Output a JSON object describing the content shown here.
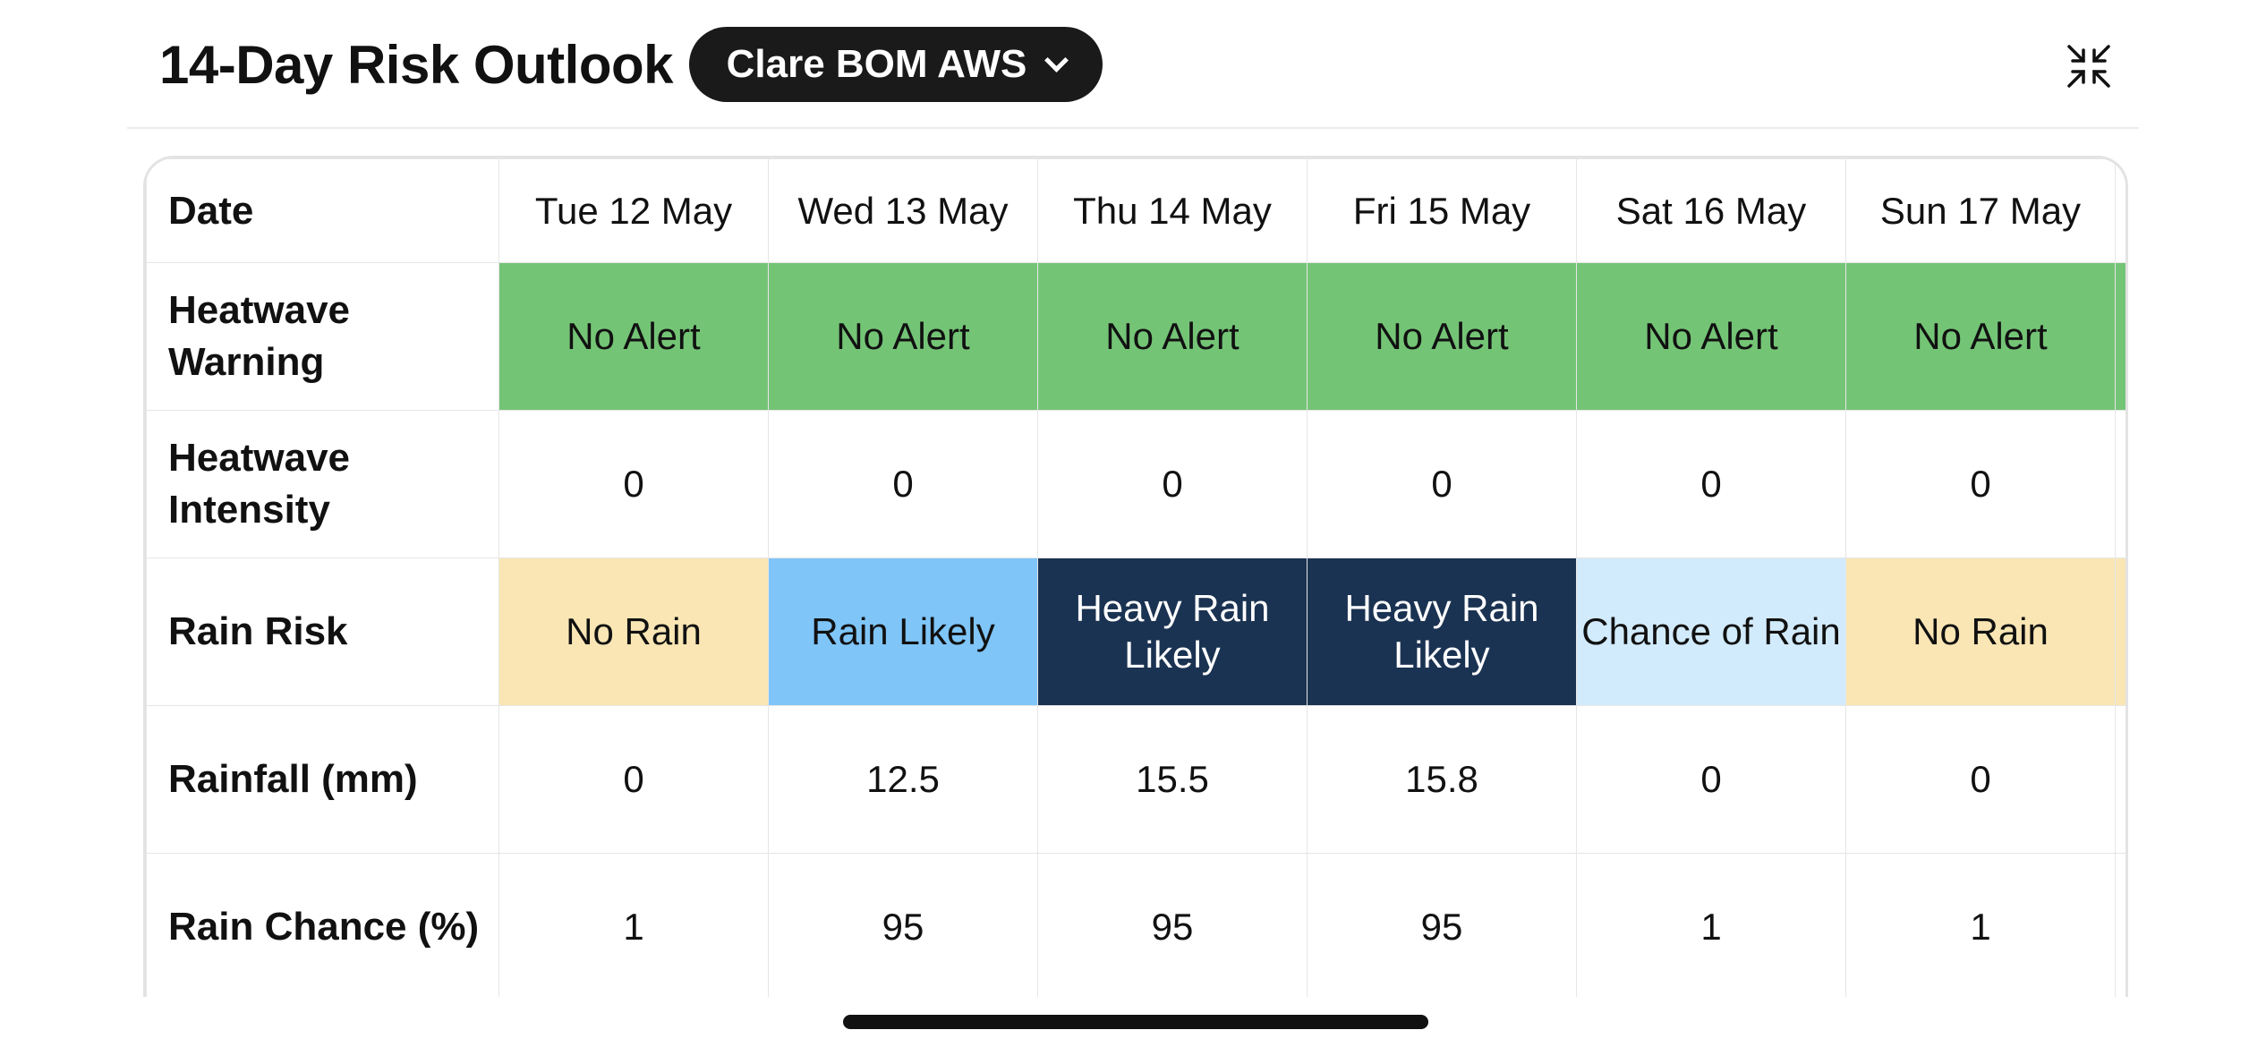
{
  "header": {
    "title": "14-Day Risk Outlook",
    "station_label": "Clare BOM AWS",
    "station_icon": "chevron-down-icon",
    "collapse_icon": "collapse-icon"
  },
  "table": {
    "row_labels": {
      "date": "Date",
      "heatwave_warning": "Heatwave Warning",
      "heatwave_intensity": "Heatwave Intensity",
      "rain_risk": "Rain Risk",
      "rainfall": "Rainfall (mm)",
      "rain_chance": "Rain Chance (%)"
    },
    "dates": [
      "Tue 12 May",
      "Wed 13 May",
      "Thu 14 May",
      "Fri 15 May",
      "Sat 16 May",
      "Sun 17 May",
      ""
    ],
    "heatwave_warning": [
      "No Alert",
      "No Alert",
      "No Alert",
      "No Alert",
      "No Alert",
      "No Alert",
      ""
    ],
    "heatwave_intensity": [
      "0",
      "0",
      "0",
      "0",
      "0",
      "0",
      ""
    ],
    "rain_risk": [
      "No Rain",
      "Rain Likely",
      "Heavy Rain Likely",
      "Heavy Rain Likely",
      "Chance of Rain",
      "No Rain",
      ""
    ],
    "rainfall": [
      "0",
      "12.5",
      "15.5",
      "15.8",
      "0",
      "0",
      ""
    ],
    "rain_chance": [
      "1",
      "95",
      "95",
      "95",
      "1",
      "1",
      ""
    ]
  },
  "colors": {
    "no_alert": "#74c476",
    "no_rain": "#f9e6b4",
    "rain_likely": "#7fc5f8",
    "heavy_rain_likely": "#1b3352",
    "chance_of_rain": "#d2ebfc"
  }
}
